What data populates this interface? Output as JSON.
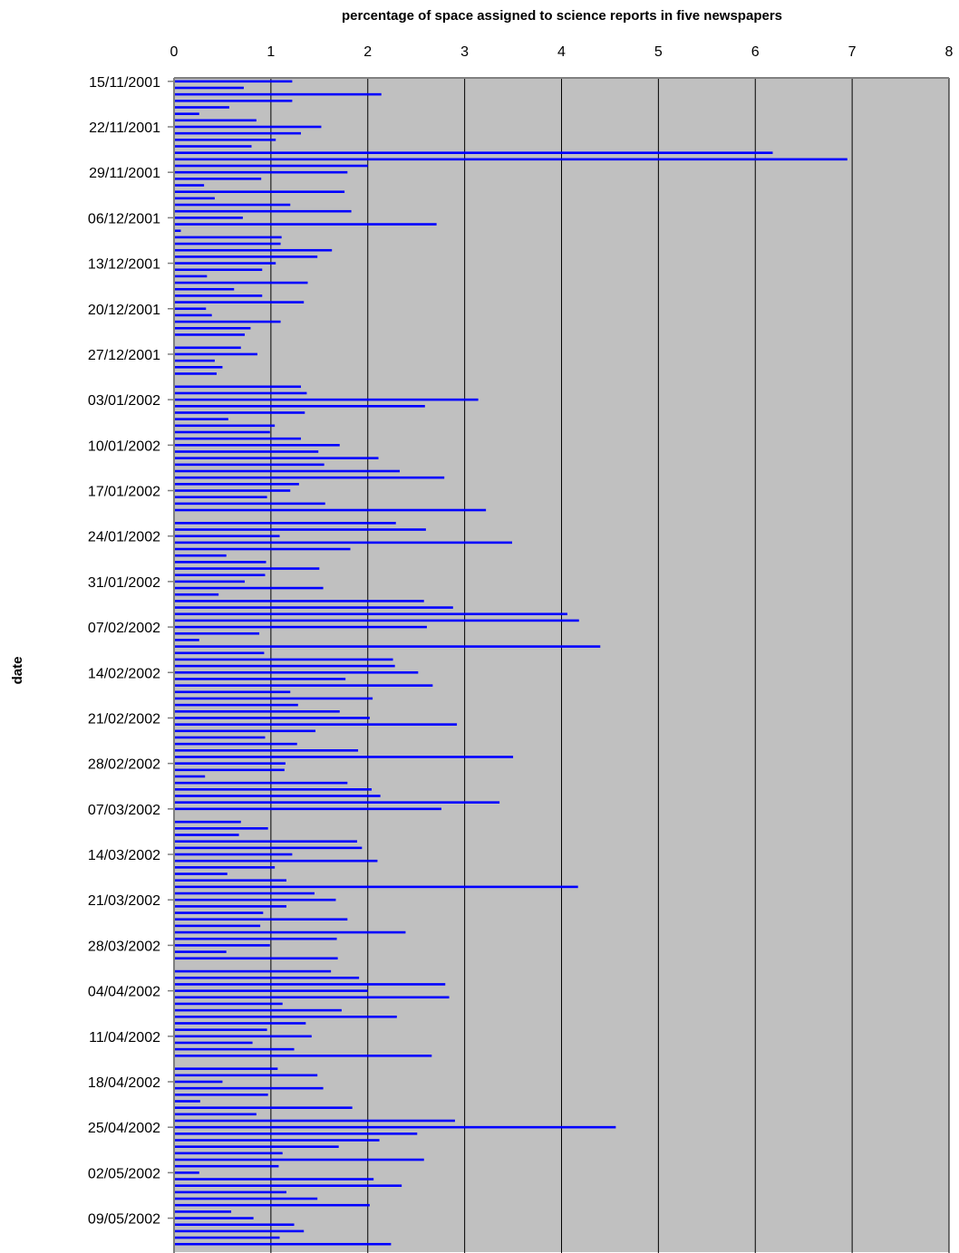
{
  "chart_data": {
    "type": "bar",
    "orientation": "horizontal",
    "title": "percentage of space assigned to science reports in five newspapers",
    "xlabel": "",
    "ylabel": "date",
    "xlim": [
      0,
      8
    ],
    "x_ticks": [
      "0",
      "1",
      "2",
      "3",
      "4",
      "5",
      "6",
      "7",
      "8"
    ],
    "y_tick_labels": [
      "15/11/2001",
      "22/11/2001",
      "29/11/2001",
      "06/12/2001",
      "13/12/2001",
      "20/12/2001",
      "27/12/2001",
      "03/01/2002",
      "10/01/2002",
      "17/01/2002",
      "24/01/2002",
      "31/01/2002",
      "07/02/2002",
      "14/02/2002",
      "21/02/2002",
      "28/02/2002",
      "07/03/2002",
      "14/03/2002",
      "21/03/2002",
      "28/03/2002",
      "04/04/2002",
      "11/04/2002",
      "18/04/2002",
      "25/04/2002",
      "02/05/2002",
      "09/05/2002"
    ],
    "grid": "vertical",
    "legend": "none",
    "colors": {
      "bar": "#0000ff",
      "plot_area": "#c0c0c0",
      "gridline": "#000000",
      "axis": "#808080",
      "text": "#000000"
    },
    "series": [
      {
        "values": [
          1.22,
          0.72,
          2.14,
          1.22,
          0.57,
          0.26,
          0.85,
          1.52,
          1.31,
          1.05,
          0.8,
          6.18,
          6.95,
          2.0,
          1.79,
          0.9,
          0.31,
          1.76,
          0.42,
          1.2,
          1.83,
          0.71,
          2.71,
          0.07,
          1.11,
          1.1,
          1.63,
          1.48,
          1.05,
          0.91,
          0.34,
          1.38,
          0.62,
          0.91,
          1.34,
          0.33,
          0.39,
          1.1,
          0.79,
          0.73,
          0.0,
          0.69,
          0.86,
          0.42,
          0.5,
          0.44,
          0.0,
          1.31,
          1.37,
          3.14,
          2.59,
          1.35,
          0.56,
          1.04,
          0.99,
          1.31,
          1.71,
          1.49,
          2.11,
          1.55,
          2.33,
          2.79,
          1.29,
          1.2,
          0.96,
          1.56,
          3.22,
          0.0,
          2.29,
          2.6,
          1.09,
          3.49,
          1.82,
          0.54,
          0.95,
          1.5,
          0.94,
          0.73,
          1.54,
          0.46,
          2.58,
          2.88,
          4.06,
          4.18,
          2.61,
          0.88,
          0.26,
          4.4,
          0.93,
          2.26,
          2.28,
          2.52,
          1.77,
          2.67,
          1.2,
          2.05,
          1.28,
          1.71,
          2.02,
          2.92,
          1.46,
          0.94,
          1.27,
          1.9,
          3.5,
          1.15,
          1.14,
          0.32,
          1.79,
          2.04,
          2.13,
          3.36,
          2.76,
          0.0,
          0.69,
          0.97,
          0.67,
          1.89,
          1.94,
          1.22,
          2.1,
          1.04,
          0.55,
          1.16,
          4.17,
          1.45,
          1.67,
          1.16,
          0.92,
          1.79,
          0.89,
          2.39,
          1.68,
          0.99,
          0.54,
          1.69,
          0.0,
          1.62,
          1.91,
          2.8,
          2.0,
          2.84,
          1.12,
          1.73,
          2.3,
          1.36,
          0.96,
          1.42,
          0.81,
          1.24,
          2.66,
          0.0,
          1.07,
          1.48,
          0.5,
          1.54,
          0.97,
          0.27,
          1.84,
          0.85,
          2.9,
          4.56,
          2.51,
          2.12,
          1.7,
          1.12,
          2.58,
          1.08,
          0.26,
          2.06,
          2.35,
          1.16,
          1.48,
          2.02,
          0.59,
          0.82,
          1.24,
          1.34,
          1.09,
          2.24
        ]
      }
    ]
  }
}
